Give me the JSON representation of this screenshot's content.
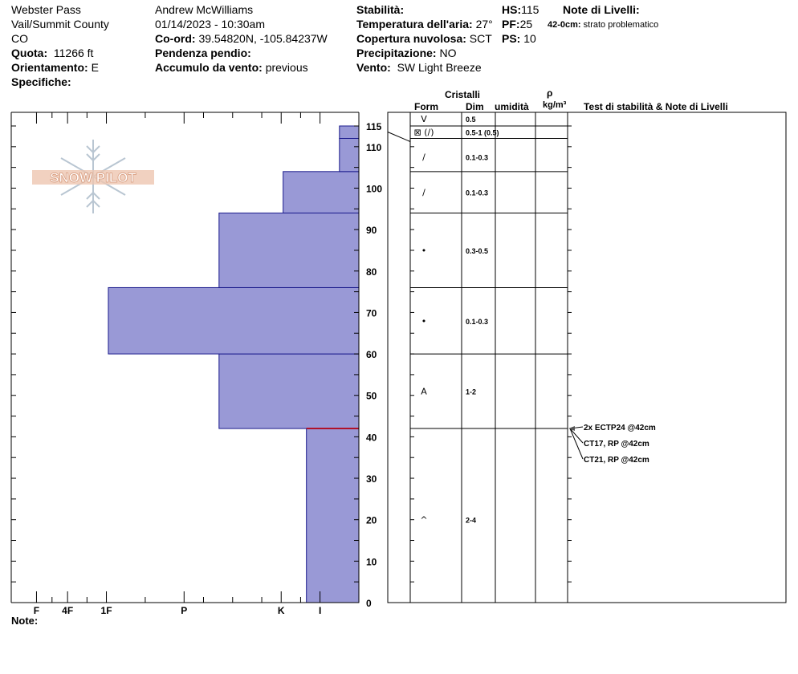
{
  "header": {
    "col1": {
      "location": "Webster Pass",
      "region": "Vail/Summit County",
      "state": "CO",
      "elevation_label": "Quota:",
      "elevation_value": "11266 ft",
      "aspect_label": "Orientamento:",
      "aspect_value": "E",
      "specifics_label": "Specifiche:"
    },
    "col2": {
      "observer": "Andrew McWilliams",
      "datetime": "01/14/2023 - 10:30am",
      "coord_label": "Co-ord:",
      "coord_value": "39.54820N, -105.84237W",
      "slope_label": "Pendenza pendio:",
      "wind_loading_label": "Accumulo da vento:",
      "wind_loading_value": "previous"
    },
    "col3": {
      "stability_label": "Stabilità:",
      "air_temp_label": "Temperatura dell'aria:",
      "air_temp_value": "27°",
      "cloud_label": "Copertura nuvolosa:",
      "cloud_value": "SCT",
      "precip_label": "Precipitazione:",
      "precip_value": "NO",
      "wind_label": "Vento:",
      "wind_value": "SW Light Breeze"
    },
    "col4": {
      "hs_label": "HS:",
      "hs_value": "115",
      "pf_label": "PF:",
      "pf_value": "25",
      "ps_label": "PS:",
      "ps_value": "10"
    },
    "col5": {
      "layer_notes_label": "Note di Livelli:",
      "layer_note_depth": "42-0cm:",
      "layer_note_text": "strato problematico"
    }
  },
  "columns": {
    "crystals": "Cristalli",
    "form": "Form",
    "dim": "Dim",
    "humidity": "umidità",
    "rho": "ρ",
    "density_unit": "kg/m³",
    "tests": "Test di stabilità & Note di Livelli"
  },
  "footer": {
    "note_label": "Note:"
  },
  "logo_text": "SNOW PILOT",
  "colors": {
    "layer_fill": "#9999d6",
    "layer_stroke": "#1a1a8c",
    "weak_layer": "#b0122a"
  },
  "chart_data": {
    "type": "bar",
    "y_axis": {
      "range": [
        0,
        115
      ],
      "ticks": [
        "0",
        "10",
        "20",
        "30",
        "40",
        "50",
        "60",
        "70",
        "80",
        "90",
        "100",
        "110",
        "115"
      ]
    },
    "hardness_ticks": [
      "I",
      "K",
      "P",
      "1F",
      "4F",
      "F"
    ],
    "hardness_tick_pos": [
      1.0,
      2.0,
      4.5,
      6.5,
      7.5,
      8.3
    ],
    "hardness_max": 8.95,
    "layers": [
      {
        "bottom": 0,
        "top": 42,
        "hardness": 1.35,
        "form": "^",
        "dim": "2-4"
      },
      {
        "bottom": 42,
        "top": 60,
        "hardness": 3.6,
        "form": "A",
        "dim": "1-2"
      },
      {
        "bottom": 60,
        "top": 76,
        "hardness": 6.45,
        "form": "•",
        "dim": "0.1-0.3"
      },
      {
        "bottom": 76,
        "top": 94,
        "hardness": 3.6,
        "form": "•",
        "dim": "0.3-0.5"
      },
      {
        "bottom": 94,
        "top": 104,
        "hardness": 1.95,
        "form": "/",
        "dim": "0.1-0.3"
      },
      {
        "bottom": 104,
        "top": 112,
        "hardness": 0.5,
        "form": "/",
        "dim": "0.1-0.3"
      },
      {
        "bottom": 112,
        "top": 115,
        "hardness": 0.5,
        "form": "⊠ (/)",
        "dim": "0.5-1 (0.5)"
      },
      {
        "bottom": 115,
        "top": 115,
        "hardness": 0.5,
        "form": "V",
        "dim": "0.5"
      }
    ],
    "weak_layer_depth": 42,
    "tests": [
      "2x ECTP24 @42cm",
      "CT17, RP @42cm",
      "CT21, RP @42cm"
    ]
  }
}
